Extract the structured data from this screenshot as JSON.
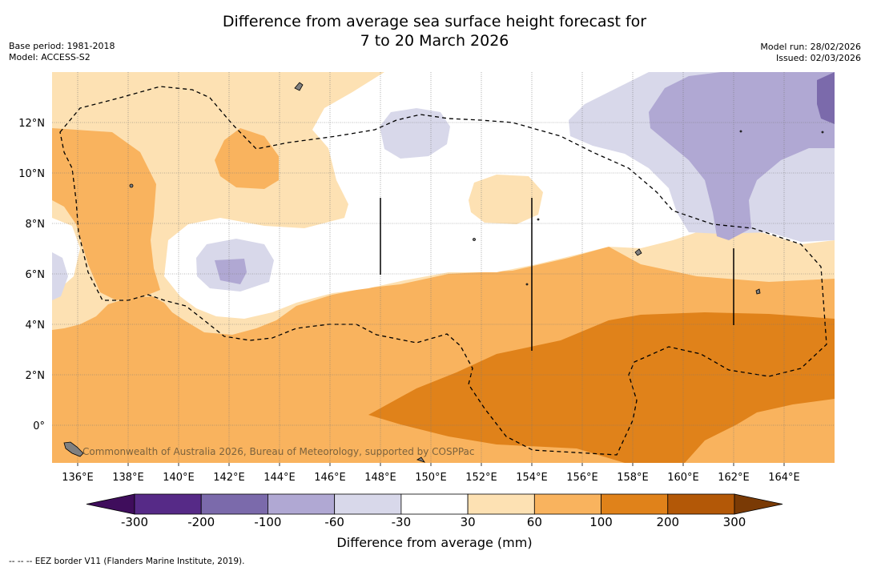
{
  "title": {
    "line1": "Difference from average sea surface height forecast for",
    "line2": "7 to 20 March 2026"
  },
  "meta_left": {
    "base_period": "Base period: 1981-2018",
    "model": "Model: ACCESS-S2"
  },
  "meta_right": {
    "model_run": "Model run: 28/02/2026",
    "issued": "Issued: 02/03/2026"
  },
  "map": {
    "lon_labels": [
      "136°E",
      "138°E",
      "140°E",
      "142°E",
      "144°E",
      "146°E",
      "148°E",
      "150°E",
      "152°E",
      "154°E",
      "156°E",
      "158°E",
      "160°E",
      "162°E",
      "164°E"
    ],
    "lat_labels": [
      "12°N",
      "10°N",
      "8°N",
      "6°N",
      "4°N",
      "2°N",
      "0°"
    ],
    "copyright": "Commonwealth of Australia 2026, Bureau of Meteorology, supported by COSPPac"
  },
  "colorbar": {
    "title": "Difference from average (mm)",
    "labels": [
      "-300",
      "-200",
      "-100",
      "-60",
      "-30",
      "30",
      "60",
      "100",
      "200",
      "300"
    ],
    "colors": [
      "#3f0d5c",
      "#562a87",
      "#7b6aab",
      "#b0a8d3",
      "#d8d8ea",
      "#ffffff",
      "#fde1b3",
      "#f9b35e",
      "#e0821a",
      "#b35807",
      "#7a3a05"
    ]
  },
  "footer": "--  --  -- EEZ border V11 (Flanders Marine Institute, 2019)."
}
